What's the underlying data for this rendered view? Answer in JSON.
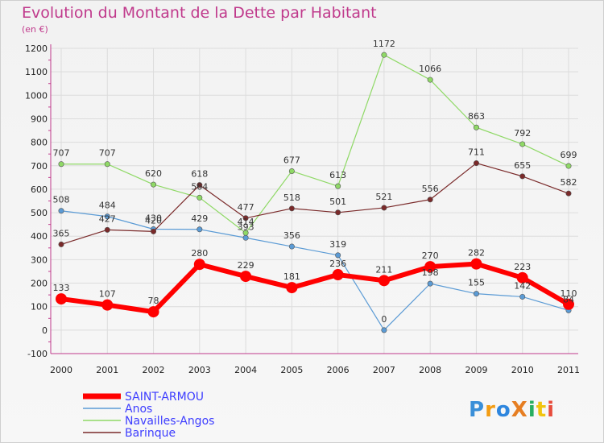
{
  "chart_data": {
    "type": "line",
    "title": "Evolution du Montant de la Dette par Habitant",
    "subtitle": "(en €)",
    "x": [
      "2000",
      "2001",
      "2002",
      "2003",
      "2004",
      "2005",
      "2006",
      "2007",
      "2008",
      "2009",
      "2010",
      "2011"
    ],
    "ylim": [
      -100,
      1200
    ],
    "yticks": [
      -100,
      0,
      100,
      200,
      300,
      400,
      500,
      600,
      700,
      800,
      900,
      1000,
      1100,
      1200
    ],
    "grid": true,
    "legend_position": "bottom-left",
    "series": [
      {
        "name": "SAINT-ARMOU",
        "color": "#ff0000",
        "values": [
          133,
          107,
          78,
          280,
          229,
          181,
          236,
          211,
          270,
          282,
          223,
          110
        ]
      },
      {
        "name": "Anos",
        "color": "#5b9bd5",
        "values": [
          508,
          484,
          430,
          429,
          393,
          356,
          319,
          0,
          198,
          155,
          142,
          84
        ]
      },
      {
        "name": "Navailles-Angos",
        "color": "#8fd966",
        "values": [
          707,
          707,
          620,
          564,
          414,
          677,
          613,
          1172,
          1066,
          863,
          792,
          699
        ]
      },
      {
        "name": "Barinque",
        "color": "#7a2a2a",
        "values": [
          365,
          427,
          420,
          618,
          477,
          518,
          501,
          521,
          556,
          711,
          655,
          582
        ]
      }
    ]
  },
  "brand": {
    "text": "ProXiti"
  }
}
